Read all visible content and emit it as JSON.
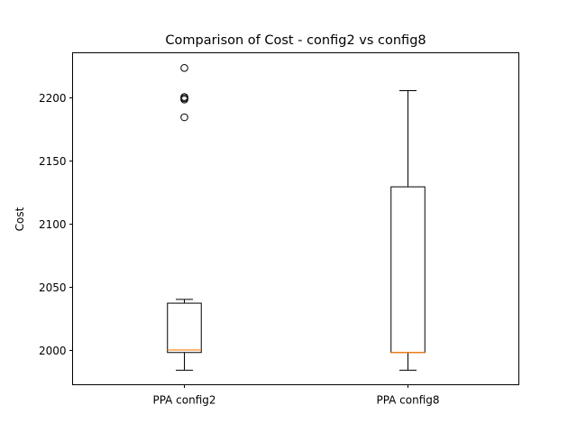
{
  "chart_data": {
    "type": "box",
    "title": "Comparison of Cost - config2 vs config8",
    "xlabel": "",
    "ylabel": "Cost",
    "ylim": [
      1972.5,
      2235
    ],
    "yticks": [
      2000,
      2050,
      2100,
      2150,
      2200
    ],
    "categories": [
      "PPA config2",
      "PPA config8"
    ],
    "boxes": [
      {
        "label": "PPA config2",
        "whisker_low": 1984,
        "q1": 1998,
        "median": 2000,
        "q3": 2037,
        "whisker_high": 2040,
        "outliers": [
          2184,
          2198,
          2199,
          2200,
          2223
        ]
      },
      {
        "label": "PPA config8",
        "whisker_low": 1984,
        "q1": 1998,
        "median": 1998,
        "q3": 2129,
        "whisker_high": 2205,
        "outliers": []
      }
    ],
    "grid": false,
    "colors": {
      "box": "#000000",
      "median": "#ff7f0e",
      "outlier": "#000000"
    }
  }
}
